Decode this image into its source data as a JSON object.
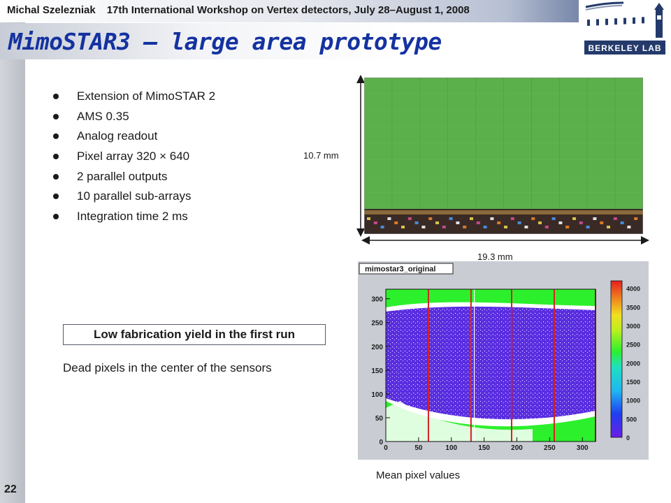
{
  "header": {
    "author": "Michal Szelezniak",
    "event": "17th International Workshop on Vertex detectors, July 28–August 1, 2008"
  },
  "title": "MimoSTAR3 – large area prototype",
  "logo": {
    "text": "BERKELEY LAB",
    "icon": "berkeley-lab-logo"
  },
  "bullets": [
    "Extension of MimoSTAR 2",
    "AMS 0.35",
    "Analog readout",
    "Pixel array 320 × 640",
    "2 parallel outputs",
    "10 parallel sub-arrays",
    "Integration time 2 ms"
  ],
  "yield_box": "Low fabrication yield in the first run",
  "dead_pixels_text": "Dead pixels in the center of the sensors",
  "chip_image": {
    "height_label": "10.7 mm",
    "width_label": "19.3 mm",
    "colors": {
      "array": "#5cb04c",
      "periphery": "#b26b2a"
    }
  },
  "plot": {
    "title": "mimostar3_original",
    "x_ticks": [
      "0",
      "50",
      "100",
      "150",
      "200",
      "250",
      "300"
    ],
    "y_ticks": [
      "0",
      "50",
      "100",
      "150",
      "200",
      "250",
      "300"
    ],
    "color_scale_ticks": [
      "0",
      "500",
      "1000",
      "1500",
      "2000",
      "2500",
      "3000",
      "3500",
      "4000"
    ],
    "caption": "Mean pixel values"
  },
  "slide_number": "22"
}
